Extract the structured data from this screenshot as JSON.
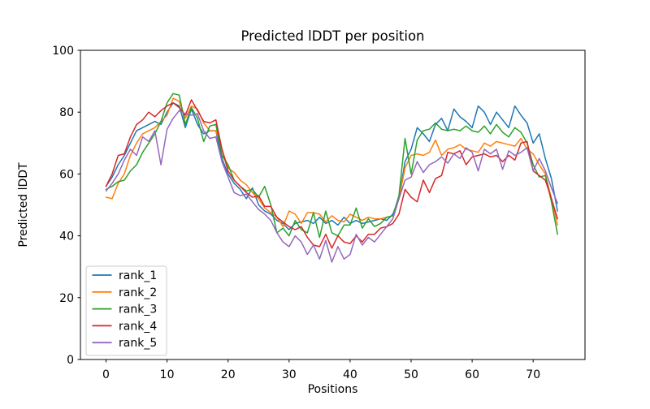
{
  "figure": {
    "title": "Predicted lDDT per position",
    "xlabel": "Positions",
    "ylabel": "Predicted lDDT"
  },
  "chart_data": {
    "type": "line",
    "title": "Predicted lDDT per position",
    "xlabel": "Positions",
    "ylabel": "Predicted lDDT",
    "ylim": [
      0,
      100
    ],
    "xlim": [
      -4.2,
      78.5
    ],
    "x_ticks": [
      0,
      10,
      20,
      30,
      40,
      50,
      60,
      70
    ],
    "y_ticks": [
      0,
      20,
      40,
      60,
      80,
      100
    ],
    "grid": false,
    "legend_position": "lower left",
    "x": [
      0,
      1,
      2,
      3,
      4,
      5,
      6,
      7,
      8,
      9,
      10,
      11,
      12,
      13,
      14,
      15,
      16,
      17,
      18,
      19,
      20,
      21,
      22,
      23,
      24,
      25,
      26,
      27,
      28,
      29,
      30,
      31,
      32,
      33,
      34,
      35,
      36,
      37,
      38,
      39,
      40,
      41,
      42,
      43,
      44,
      45,
      46,
      47,
      48,
      49,
      50,
      51,
      52,
      53,
      54,
      55,
      56,
      57,
      58,
      59,
      60,
      61,
      62,
      63,
      64,
      65,
      66,
      67,
      68,
      69,
      70,
      71,
      72,
      73,
      74
    ],
    "series": [
      {
        "name": "rank_1",
        "color": "#1f77b4",
        "values": [
          56,
          59,
          63,
          66,
          70,
          74,
          75,
          76,
          77,
          76,
          80,
          83,
          82,
          75,
          81,
          76,
          73,
          74,
          74,
          65,
          60,
          57,
          55,
          52,
          55.5,
          50,
          48,
          47,
          45,
          44,
          42,
          44,
          44.5,
          45,
          44,
          46,
          44,
          45,
          43.5,
          46,
          44,
          45,
          44,
          44.5,
          45,
          45.5,
          45,
          47,
          52,
          64,
          68,
          75,
          73,
          70.5,
          76,
          78,
          74,
          81,
          78.5,
          77,
          75,
          82,
          80,
          76,
          80,
          77.5,
          75,
          82,
          79,
          76.5,
          70,
          73,
          65,
          58.5,
          48
        ]
      },
      {
        "name": "rank_2",
        "color": "#ff7f0e",
        "values": [
          52.5,
          52,
          57,
          60,
          66,
          70,
          73,
          74,
          75,
          77,
          79,
          84.5,
          83.5,
          78,
          82,
          81,
          76.5,
          74,
          74,
          68,
          62,
          60.5,
          58,
          56.5,
          54,
          52,
          49,
          47.5,
          46,
          43,
          48,
          47,
          44,
          47.5,
          47.5,
          47,
          44.5,
          46.5,
          45,
          44.5,
          47,
          46,
          45,
          46,
          45.5,
          45.5,
          46,
          46.5,
          52,
          62,
          66,
          66.5,
          66,
          67,
          71,
          66,
          68,
          68.5,
          69.5,
          68,
          67.5,
          67,
          70,
          69,
          70.5,
          70,
          69.5,
          69,
          71.5,
          68,
          66.5,
          63,
          60,
          52,
          43.5
        ]
      },
      {
        "name": "rank_3",
        "color": "#2ca02c",
        "values": [
          55,
          56,
          57.5,
          58,
          61,
          63,
          67,
          70,
          73,
          77,
          83,
          86,
          85.5,
          76,
          81.5,
          78,
          70.5,
          75.5,
          76,
          66,
          63,
          58,
          56,
          54.5,
          55,
          52.5,
          56,
          50,
          41,
          42.5,
          40,
          45,
          42,
          41,
          47.5,
          39.5,
          48,
          41,
          40,
          43.5,
          43.5,
          49,
          42.5,
          45.5,
          43,
          44,
          46,
          46.5,
          53,
          71.5,
          60,
          71,
          74,
          74.5,
          76.5,
          74.5,
          74,
          74.5,
          74,
          75.5,
          74,
          73.5,
          75.5,
          73,
          76,
          73.5,
          72,
          75,
          73.5,
          70,
          63,
          59,
          59.5,
          51,
          40.5
        ]
      },
      {
        "name": "rank_4",
        "color": "#d62728",
        "values": [
          56,
          60,
          66,
          66.5,
          72,
          76,
          77.5,
          80,
          78.5,
          80.5,
          82,
          83,
          81.5,
          79,
          84,
          80.5,
          77,
          76.5,
          77.5,
          68,
          61,
          58,
          56,
          54,
          52.5,
          53,
          49.5,
          49.5,
          46,
          44.5,
          43,
          42,
          43,
          39.5,
          37,
          36.5,
          40.5,
          36,
          40,
          38,
          37.5,
          40,
          38,
          40.5,
          40.5,
          42.5,
          43,
          44,
          47,
          55,
          52.5,
          51,
          58,
          54,
          58.5,
          59.5,
          67,
          66.5,
          67.5,
          63,
          65.5,
          66,
          66.5,
          65.5,
          66,
          64,
          66,
          64.5,
          70,
          70.5,
          61,
          59.5,
          58,
          52,
          45.5
        ]
      },
      {
        "name": "rank_5",
        "color": "#9467bd",
        "values": [
          54.5,
          57,
          60,
          64.5,
          68,
          66,
          72,
          70.5,
          74,
          63,
          74.5,
          78,
          80.5,
          79.5,
          79,
          79.5,
          74,
          71.5,
          72,
          64,
          59,
          54,
          53,
          53.5,
          51,
          48.5,
          47,
          45,
          41,
          38,
          36.5,
          40,
          38,
          34,
          37,
          32.5,
          38.5,
          31.5,
          36.5,
          32.5,
          34,
          40.5,
          37,
          39.5,
          38,
          40.5,
          43,
          45.5,
          52,
          58,
          59,
          64,
          60.5,
          63,
          64,
          65.5,
          63.5,
          66.5,
          65,
          68.5,
          67,
          61,
          68,
          66.5,
          68,
          61.5,
          67.5,
          66,
          67,
          68.5,
          61,
          65,
          61,
          55.5,
          50.5
        ]
      }
    ]
  }
}
